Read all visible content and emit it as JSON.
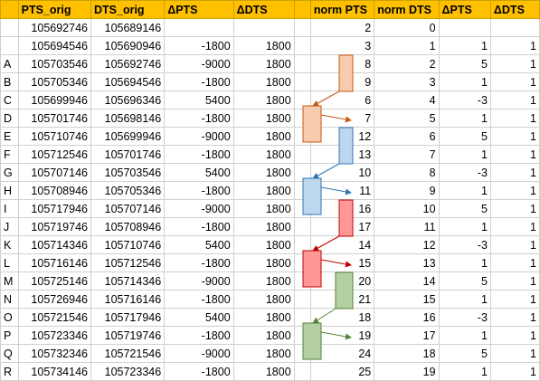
{
  "columns": [
    "",
    "PTS_orig",
    "DTS_orig",
    "ΔPTS",
    "ΔDTS",
    "",
    "norm PTS",
    "norm DTS",
    "ΔPTS",
    "ΔDTS"
  ],
  "rows": [
    [
      "",
      "105692746",
      "105689146",
      "",
      "",
      "",
      "2",
      "0",
      "",
      ""
    ],
    [
      "",
      "105694546",
      "105690946",
      "-1800",
      "1800",
      "",
      "3",
      "1",
      "1",
      "1"
    ],
    [
      "A",
      "105703546",
      "105692746",
      "-9000",
      "1800",
      "",
      "8",
      "2",
      "5",
      "1"
    ],
    [
      "B",
      "105705346",
      "105694546",
      "-1800",
      "1800",
      "",
      "9",
      "3",
      "1",
      "1"
    ],
    [
      "C",
      "105699946",
      "105696346",
      "5400",
      "1800",
      "",
      "6",
      "4",
      "-3",
      "1"
    ],
    [
      "D",
      "105701746",
      "105698146",
      "-1800",
      "1800",
      "",
      "7",
      "5",
      "1",
      "1"
    ],
    [
      "E",
      "105710746",
      "105699946",
      "-9000",
      "1800",
      "",
      "12",
      "6",
      "5",
      "1"
    ],
    [
      "F",
      "105712546",
      "105701746",
      "-1800",
      "1800",
      "",
      "13",
      "7",
      "1",
      "1"
    ],
    [
      "G",
      "105707146",
      "105703546",
      "5400",
      "1800",
      "",
      "10",
      "8",
      "-3",
      "1"
    ],
    [
      "H",
      "105708946",
      "105705346",
      "-1800",
      "1800",
      "",
      "11",
      "9",
      "1",
      "1"
    ],
    [
      "I",
      "105717946",
      "105707146",
      "-9000",
      "1800",
      "",
      "16",
      "10",
      "5",
      "1"
    ],
    [
      "J",
      "105719746",
      "105708946",
      "-1800",
      "1800",
      "",
      "17",
      "11",
      "1",
      "1"
    ],
    [
      "K",
      "105714346",
      "105710746",
      "5400",
      "1800",
      "",
      "14",
      "12",
      "-3",
      "1"
    ],
    [
      "L",
      "105716146",
      "105712546",
      "-1800",
      "1800",
      "",
      "15",
      "13",
      "1",
      "1"
    ],
    [
      "M",
      "105725146",
      "105714346",
      "-9000",
      "1800",
      "",
      "20",
      "14",
      "5",
      "1"
    ],
    [
      "N",
      "105726946",
      "105716146",
      "-1800",
      "1800",
      "",
      "21",
      "15",
      "1",
      "1"
    ],
    [
      "O",
      "105721546",
      "105717946",
      "5400",
      "1800",
      "",
      "18",
      "16",
      "-3",
      "1"
    ],
    [
      "P",
      "105723346",
      "105719746",
      "-1800",
      "1800",
      "",
      "19",
      "17",
      "1",
      "1"
    ],
    [
      "Q",
      "105732346",
      "105721546",
      "-9000",
      "1800",
      "",
      "24",
      "18",
      "5",
      "1"
    ],
    [
      "R",
      "105734146",
      "105723346",
      "-1800",
      "1800",
      "",
      "25",
      "19",
      "1",
      "1"
    ]
  ],
  "highlight_colors": {
    "orange": "#f8cbad",
    "blue": "#bdd7ee",
    "red": "#ff9797",
    "green": "#b5cfa5",
    "header": "#ffc000"
  }
}
